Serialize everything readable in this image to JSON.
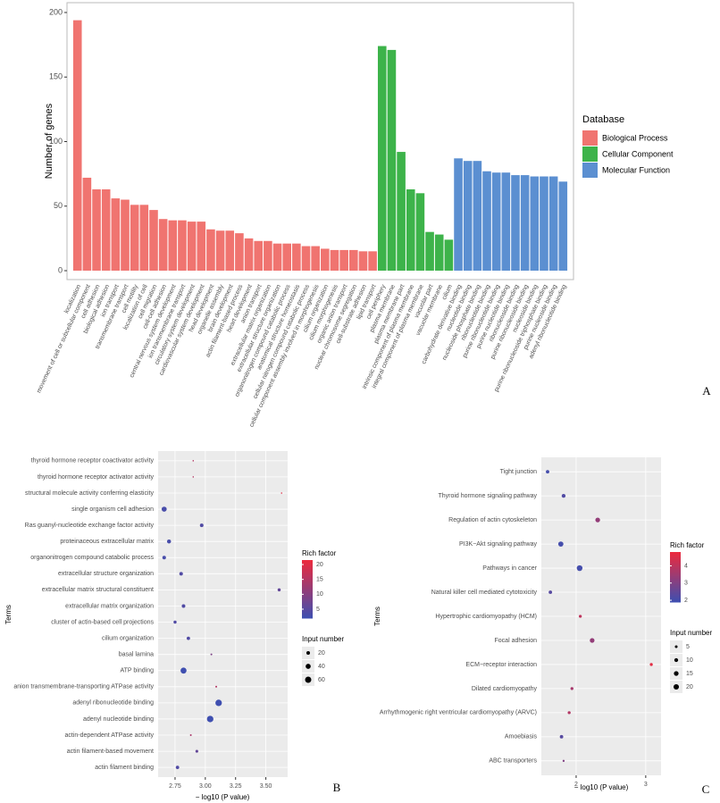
{
  "chart_data": [
    {
      "type": "bar",
      "panel": "A",
      "ylabel": "Number of genes",
      "legend_title": "Database",
      "ylim": [
        -6.9,
        207.6
      ],
      "yticks": [
        0,
        50,
        100,
        150,
        200
      ],
      "grid": false,
      "series": [
        {
          "name": "Biological Process",
          "color": "#f07470",
          "categories": [
            "localization",
            "movement of cell or subcellular component",
            "cell adhesion",
            "biological adhesion",
            "ion transport",
            "transmembrane transport",
            "cell motility",
            "localization of cell",
            "cell migration",
            "cell-cell adhesion",
            "central nervous system development",
            "ion transmembrane transport",
            "circulatory system development",
            "cardiovascular system development",
            "head development",
            "organelle assembly",
            "brain development",
            "actin filament-based process",
            "heart development",
            "anion transport",
            "extracellular matrix organization",
            "extracellular structure organization",
            "organonitrogen compound catabolic process",
            "anatomical structure homeostasis",
            "cellular nitrogen compound catabolic process",
            "cellular component assembly involved in morphogenesis",
            "cilium organization",
            "cilium morphogenesis",
            "organic anion transport",
            "nuclear chromosome segregation",
            "cell-substrate adhesion",
            "lipid transport"
          ],
          "values": [
            194,
            72,
            63,
            63,
            56,
            55,
            51,
            51,
            47,
            40,
            39,
            39,
            38,
            38,
            32,
            31,
            31,
            29,
            25,
            23,
            23,
            21,
            21,
            21,
            19,
            19,
            17,
            16,
            16,
            16,
            15,
            15
          ]
        },
        {
          "name": "Cellular Component",
          "color": "#3db34a",
          "categories": [
            "cell periphery",
            "plasma membrane",
            "plasma membrane part",
            "intrinsic component of plasma membrane",
            "integral component of plasma membrane",
            "vacuolar part",
            "vacuolar membrane",
            "cilium"
          ],
          "values": [
            174,
            171,
            92,
            63,
            60,
            30,
            28,
            24
          ]
        },
        {
          "name": "Molecular Function",
          "color": "#5b8fd1",
          "categories": [
            "carbohydrate derivative binding",
            "nucleotide binding",
            "nucleoside phosphate binding",
            "ribonucleotide binding",
            "purine ribonucleotide binding",
            "purine nucleotide binding",
            "ribonucleoside binding",
            "purine ribonucleoside binding",
            "nucleoside binding",
            "purine ribonucleoside triphosphate binding",
            "purine nucleoside binding",
            "adenyl ribonucleotide binding"
          ],
          "values": [
            87,
            85,
            85,
            77,
            76,
            76,
            74,
            74,
            73,
            73,
            73,
            69
          ]
        }
      ]
    },
    {
      "type": "dot",
      "panel": "B",
      "xlabel": "− log10 (P value)",
      "ylabel": "Terms",
      "xlim": [
        2.61,
        3.68
      ],
      "xticks": [
        2.75,
        {
          "value": 3.0,
          "label": "3.00"
        },
        3.25,
        {
          "value": 3.5,
          "label": "3.50"
        }
      ],
      "color_title": "Rich factor",
      "colorlim": [
        2,
        21.5
      ],
      "color_low": "#3f4fb0",
      "color_high": "#ee2a3c",
      "color_ticks": [
        5,
        10,
        15,
        20
      ],
      "size_title": "Input number",
      "size_ticks": [
        20,
        40,
        60
      ],
      "categories": [
        "thyroid hormone receptor coactivator activity",
        "thyroid hormone receptor activator activity",
        "structural molecule activity conferring elasticity",
        "single organism cell adhesion",
        "Ras guanyl-nucleotide exchange factor activity",
        "proteinaceous extracellular matrix",
        "organonitrogen compound catabolic process",
        "extracellular structure organization",
        "extracellular matrix structural constituent",
        "extracellular matrix organization",
        "cluster of actin-based cell projections",
        "cilium organization",
        "basal lamina",
        "ATP binding",
        "anion transmembrane-transporting ATPase activity",
        "adenyl ribonucleotide binding",
        "adenyl nucleotide binding",
        "actin-dependent ATPase activity",
        "actin filament-based movement",
        "actin filament binding"
      ],
      "x": [
        2.9,
        2.9,
        3.63,
        2.66,
        2.97,
        2.7,
        2.66,
        2.8,
        3.61,
        2.82,
        2.75,
        2.86,
        3.05,
        2.82,
        3.09,
        3.11,
        3.04,
        2.88,
        2.93,
        2.77
      ],
      "rich_factor": [
        15,
        15,
        20,
        3,
        4,
        3,
        3,
        4,
        6,
        4,
        4,
        4,
        9,
        2,
        15,
        2,
        2,
        14,
        6,
        4
      ],
      "input_number": [
        3,
        3,
        3,
        40,
        20,
        25,
        20,
        20,
        15,
        20,
        15,
        18,
        5,
        55,
        5,
        65,
        65,
        5,
        12,
        18
      ]
    },
    {
      "type": "dot",
      "panel": "C",
      "xlabel": "− log10 (P value)",
      "ylabel": "Terms",
      "xlim": [
        1.5,
        3.22
      ],
      "xticks": [
        2,
        3
      ],
      "color_title": "Rich factor",
      "colorlim": [
        1.9,
        4.8
      ],
      "color_low": "#3f4fb0",
      "color_high": "#ee2a3c",
      "color_ticks": [
        2,
        3,
        4
      ],
      "size_title": "Input number",
      "size_ticks": [
        5,
        10,
        15,
        20
      ],
      "categories": [
        "Tight junction",
        "Thyroid hormone signaling pathway",
        "Regulation of actin cytoskeleton",
        "PI3K−Akt signaling pathway",
        "Pathways in cancer",
        "Natural killer cell mediated cytotoxicity",
        "Hypertrophic cardiomyopathy (HCM)",
        "Focal adhesion",
        "ECM−receptor interaction",
        "Dilated cardiomyopathy",
        "Arrhythmogenic right ventricular cardiomyopathy (ARVC)",
        "Amoebiasis",
        "ABC transporters"
      ],
      "x": [
        1.59,
        1.82,
        2.31,
        1.78,
        2.05,
        1.63,
        2.06,
        2.23,
        3.08,
        1.94,
        1.9,
        1.79,
        1.82
      ],
      "rich_factor": [
        2,
        2.2,
        3.3,
        2,
        2,
        2.3,
        4,
        3.3,
        4.6,
        3.6,
        3.8,
        2.3,
        3
      ],
      "input_number": [
        8,
        10,
        15,
        18,
        22,
        8,
        6,
        15,
        6,
        6,
        6,
        8,
        3
      ]
    }
  ]
}
